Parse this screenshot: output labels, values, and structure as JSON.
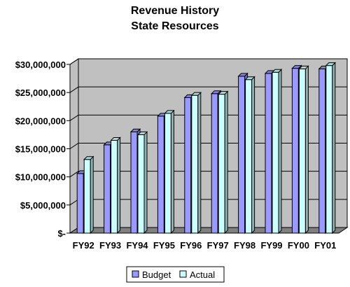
{
  "chart_data": {
    "type": "bar",
    "title": [
      "Revenue History",
      "State Resources"
    ],
    "categories": [
      "FY92",
      "FY93",
      "FY94",
      "FY95",
      "FY96",
      "FY97",
      "FY98",
      "FY99",
      "FY00",
      "FY01"
    ],
    "series": [
      {
        "name": "Budget",
        "color": "#9999FF",
        "values": [
          10600000,
          15700000,
          18000000,
          20800000,
          24100000,
          24800000,
          27900000,
          28400000,
          29300000,
          29200000
        ]
      },
      {
        "name": "Actual",
        "color": "#CCFFFF",
        "values": [
          13100000,
          16500000,
          17500000,
          21300000,
          24500000,
          24700000,
          27300000,
          28600000,
          29200000,
          29800000
        ]
      }
    ],
    "ylim": [
      0,
      30000000
    ],
    "yticks": [
      0,
      5000000,
      10000000,
      15000000,
      20000000,
      25000000,
      30000000
    ],
    "ytick_labels": [
      "$-",
      "$5,000,000",
      "$10,000,000",
      "$15,000,000",
      "$20,000,000",
      "$25,000,000",
      "$30,000,000"
    ],
    "xlabel": "",
    "ylabel": "",
    "grid": true,
    "legend": "bottom-center",
    "wall_color": "#C0C0C0",
    "floor_color": "#808080"
  }
}
